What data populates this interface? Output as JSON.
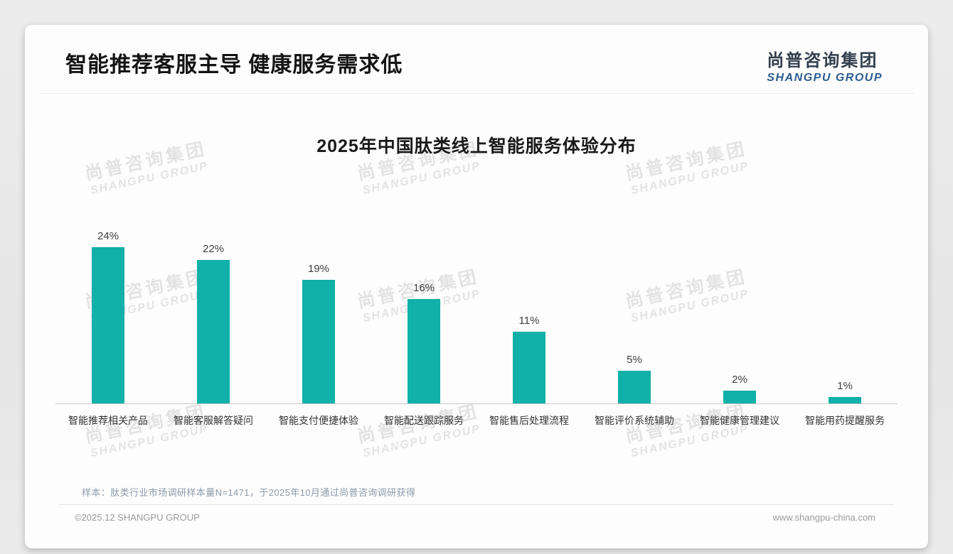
{
  "page": {
    "header_title": "智能推荐客服主导 健康服务需求低",
    "logo": {
      "cn": "尚普咨询集团",
      "en": "SHANGPU GROUP"
    },
    "watermark": {
      "cn": "尚普咨询集团",
      "en": "SHANGPU GROUP"
    },
    "note": "样本：肽类行业市场调研样本量N=1471，于2025年10月通过尚普咨询调研获得",
    "footer": {
      "copyright": "©2025.12 SHANGPU GROUP",
      "website": "www.shangpu-china.com"
    }
  },
  "chart_data": {
    "type": "bar",
    "title": "2025年中国肽类线上智能服务体验分布",
    "categories": [
      "智能推荐相关产品",
      "智能客服解答疑问",
      "智能支付便捷体验",
      "智能配送跟踪服务",
      "智能售后处理流程",
      "智能评价系统辅助",
      "智能健康管理建议",
      "智能用药提醒服务"
    ],
    "values": [
      24,
      22,
      19,
      16,
      11,
      5,
      2,
      1
    ],
    "unit": "%",
    "value_labels": [
      "24%",
      "22%",
      "19%",
      "16%",
      "11%",
      "5%",
      "2%",
      "1%"
    ],
    "bar_color": "#11b0a8",
    "axis_line_color": "#c9c9c9",
    "ylim": [
      0,
      26
    ],
    "grid": false,
    "legend": "none",
    "value_label_position": "above-bar"
  }
}
